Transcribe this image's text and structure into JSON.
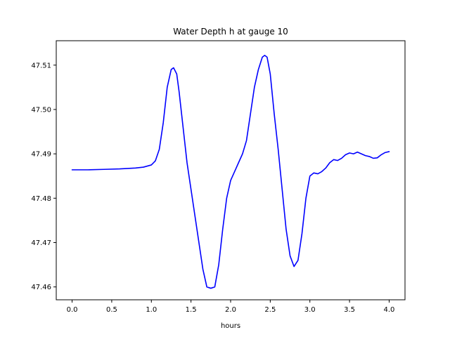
{
  "chart_data": {
    "type": "line",
    "title": "Water Depth h at gauge 10",
    "xlabel": "hours",
    "ylabel": "",
    "xlim": [
      -0.2,
      4.2
    ],
    "ylim": [
      47.4571,
      47.5155
    ],
    "xticks": [
      0.0,
      0.5,
      1.0,
      1.5,
      2.0,
      2.5,
      3.0,
      3.5,
      4.0
    ],
    "xtick_labels": [
      "0.0",
      "0.5",
      "1.0",
      "1.5",
      "2.0",
      "2.5",
      "3.0",
      "3.5",
      "4.0"
    ],
    "yticks": [
      47.46,
      47.47,
      47.48,
      47.49,
      47.5,
      47.51
    ],
    "ytick_labels": [
      "47.46",
      "47.47",
      "47.48",
      "47.49",
      "47.50",
      "47.51"
    ],
    "grid": false,
    "series": [
      {
        "color": "#0000ff",
        "x": [
          0.0,
          0.2,
          0.4,
          0.6,
          0.8,
          0.9,
          1.0,
          1.05,
          1.1,
          1.15,
          1.2,
          1.25,
          1.28,
          1.32,
          1.35,
          1.4,
          1.45,
          1.5,
          1.55,
          1.6,
          1.65,
          1.7,
          1.75,
          1.8,
          1.85,
          1.9,
          1.95,
          2.0,
          2.05,
          2.1,
          2.15,
          2.2,
          2.25,
          2.3,
          2.35,
          2.4,
          2.43,
          2.46,
          2.5,
          2.55,
          2.6,
          2.65,
          2.7,
          2.75,
          2.8,
          2.85,
          2.9,
          2.95,
          3.0,
          3.05,
          3.1,
          3.15,
          3.2,
          3.25,
          3.3,
          3.35,
          3.4,
          3.45,
          3.5,
          3.55,
          3.6,
          3.65,
          3.7,
          3.75,
          3.8,
          3.85,
          3.9,
          3.95,
          4.0
        ],
        "y": [
          47.4864,
          47.4864,
          47.4865,
          47.4866,
          47.4868,
          47.487,
          47.4875,
          47.4884,
          47.491,
          47.497,
          47.505,
          47.509,
          47.5094,
          47.508,
          47.504,
          47.496,
          47.488,
          47.482,
          47.476,
          47.47,
          47.464,
          47.46,
          47.4597,
          47.46,
          47.465,
          47.473,
          47.48,
          47.484,
          47.486,
          47.488,
          47.49,
          47.493,
          47.499,
          47.505,
          47.509,
          47.5118,
          47.5122,
          47.5118,
          47.508,
          47.499,
          47.491,
          47.482,
          47.473,
          47.467,
          47.4646,
          47.466,
          47.472,
          47.48,
          47.485,
          47.4857,
          47.4855,
          47.486,
          47.4868,
          47.488,
          47.4887,
          47.4885,
          47.489,
          47.4898,
          47.4902,
          47.49,
          47.4904,
          47.49,
          47.4896,
          47.4894,
          47.489,
          47.4891,
          47.4898,
          47.4903,
          47.4905
        ]
      }
    ]
  }
}
